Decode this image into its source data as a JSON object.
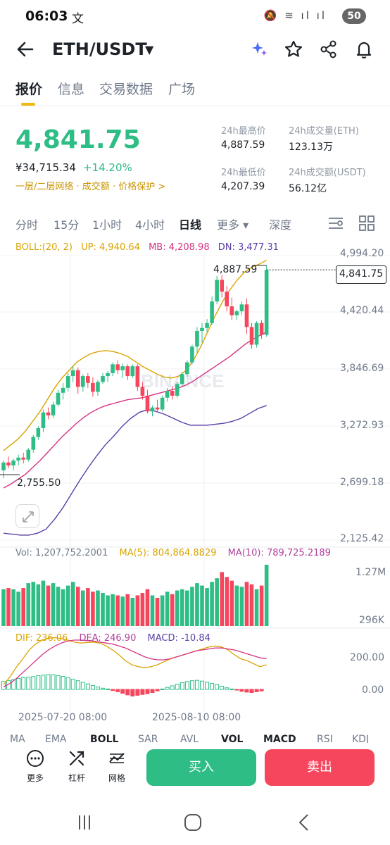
{
  "status": {
    "time": "06:03",
    "glyph": "文",
    "icons": "🔕 ≋ ıl ıl",
    "battery": "50"
  },
  "header": {
    "pair": "ETH/USDT"
  },
  "tabs": [
    "报价",
    "信息",
    "交易数据",
    "广场"
  ],
  "ticker": {
    "price": "4,841.75",
    "cny": "¥34,715.34",
    "change": "+14.20%",
    "links": [
      "一层/二层网络",
      "成交额",
      "价格保护 >"
    ],
    "stats": [
      {
        "label": "24h最高价",
        "value": "4,887.59"
      },
      {
        "label": "24h成交量(ETH)",
        "value": "123.13万"
      },
      {
        "label": "24h最低价",
        "value": "4,207.39"
      },
      {
        "label": "24h成交额(USDT)",
        "value": "56.12亿"
      }
    ]
  },
  "timeframes": [
    "分时",
    "15分",
    "1小时",
    "4小时",
    "日线",
    "更多 ▾",
    "深度"
  ],
  "indicators": {
    "boll": "BOLL:(20, 2)",
    "up": "UP: 4,940.64",
    "mb": "MB: 4,208.98",
    "dn": "DN: 3,477.31",
    "vol": "Vol: 1,207,752.2001",
    "ma5": "MA(5): 804,864.8829",
    "ma10": "MA(10): 789,725.2189",
    "dif": "DIF: 236.06",
    "dea": "DEA: 246.90",
    "macd": "MACD: -10.84"
  },
  "axis": {
    "price_ticks": [
      "4,994.20",
      "4,420.44",
      "3,846.69",
      "3,272.93",
      "2,699.18",
      "2,125.42"
    ],
    "vol_ticks": [
      "1.27M",
      "296K"
    ],
    "macd_ticks": [
      "200.00",
      "0.00"
    ],
    "dates": [
      "2025-07-20 08:00",
      "2025-08-10 08:00"
    ],
    "high_label": "4,887.59",
    "low_label": "2,755.50",
    "current_label": "4,841.75",
    "watermark": "BINANCE"
  },
  "indicator_tabs": [
    "MA",
    "EMA",
    "BOLL",
    "SAR",
    "AVL",
    "VOL",
    "MACD",
    "RSI",
    "KDJ"
  ],
  "bottom": {
    "more": "更多",
    "leverage": "杠杆",
    "grid": "网格",
    "buy": "买入",
    "sell": "卖出"
  },
  "colors": {
    "up": "#2ebd85",
    "down": "#f6465d",
    "accent": "#f0b90b",
    "boll_up": "#d9a400",
    "boll_mb": "#d63384",
    "boll_dn": "#5b3ea6"
  },
  "chart_data": {
    "type": "candlestick",
    "ylim": [
      2125.42,
      4994.2
    ],
    "candles": [
      {
        "o": 2800,
        "h": 2900,
        "l": 2720,
        "c": 2880
      },
      {
        "o": 2880,
        "h": 2940,
        "l": 2820,
        "c": 2850
      },
      {
        "o": 2850,
        "h": 2920,
        "l": 2800,
        "c": 2900
      },
      {
        "o": 2900,
        "h": 2960,
        "l": 2850,
        "c": 2930
      },
      {
        "o": 2930,
        "h": 2980,
        "l": 2870,
        "c": 2910
      },
      {
        "o": 2910,
        "h": 3030,
        "l": 2890,
        "c": 3010
      },
      {
        "o": 3010,
        "h": 3160,
        "l": 2980,
        "c": 3140
      },
      {
        "o": 3140,
        "h": 3250,
        "l": 3110,
        "c": 3230
      },
      {
        "o": 3230,
        "h": 3420,
        "l": 3190,
        "c": 3390
      },
      {
        "o": 3390,
        "h": 3440,
        "l": 3320,
        "c": 3360
      },
      {
        "o": 3360,
        "h": 3500,
        "l": 3330,
        "c": 3470
      },
      {
        "o": 3470,
        "h": 3620,
        "l": 3450,
        "c": 3590
      },
      {
        "o": 3590,
        "h": 3690,
        "l": 3520,
        "c": 3640
      },
      {
        "o": 3640,
        "h": 3790,
        "l": 3600,
        "c": 3760
      },
      {
        "o": 3760,
        "h": 3860,
        "l": 3700,
        "c": 3820
      },
      {
        "o": 3820,
        "h": 3850,
        "l": 3580,
        "c": 3650
      },
      {
        "o": 3650,
        "h": 3780,
        "l": 3600,
        "c": 3760
      },
      {
        "o": 3760,
        "h": 3790,
        "l": 3640,
        "c": 3690
      },
      {
        "o": 3690,
        "h": 3750,
        "l": 3550,
        "c": 3600
      },
      {
        "o": 3600,
        "h": 3720,
        "l": 3560,
        "c": 3700
      },
      {
        "o": 3700,
        "h": 3790,
        "l": 3680,
        "c": 3760
      },
      {
        "o": 3760,
        "h": 3810,
        "l": 3700,
        "c": 3790
      },
      {
        "o": 3790,
        "h": 3900,
        "l": 3760,
        "c": 3880
      },
      {
        "o": 3880,
        "h": 3920,
        "l": 3780,
        "c": 3820
      },
      {
        "o": 3820,
        "h": 3890,
        "l": 3740,
        "c": 3860
      },
      {
        "o": 3860,
        "h": 3880,
        "l": 3720,
        "c": 3760
      },
      {
        "o": 3760,
        "h": 3880,
        "l": 3740,
        "c": 3860
      },
      {
        "o": 3860,
        "h": 3880,
        "l": 3610,
        "c": 3650
      },
      {
        "o": 3650,
        "h": 3700,
        "l": 3520,
        "c": 3560
      },
      {
        "o": 3560,
        "h": 3620,
        "l": 3380,
        "c": 3400
      },
      {
        "o": 3400,
        "h": 3460,
        "l": 3350,
        "c": 3440
      },
      {
        "o": 3440,
        "h": 3520,
        "l": 3390,
        "c": 3420
      },
      {
        "o": 3420,
        "h": 3560,
        "l": 3400,
        "c": 3540
      },
      {
        "o": 3540,
        "h": 3640,
        "l": 3500,
        "c": 3610
      },
      {
        "o": 3610,
        "h": 3660,
        "l": 3520,
        "c": 3560
      },
      {
        "o": 3560,
        "h": 3700,
        "l": 3540,
        "c": 3680
      },
      {
        "o": 3680,
        "h": 3800,
        "l": 3660,
        "c": 3780
      },
      {
        "o": 3780,
        "h": 3920,
        "l": 3750,
        "c": 3900
      },
      {
        "o": 3900,
        "h": 4080,
        "l": 3880,
        "c": 4060
      },
      {
        "o": 4060,
        "h": 4260,
        "l": 4000,
        "c": 4220
      },
      {
        "o": 4220,
        "h": 4300,
        "l": 4100,
        "c": 4250
      },
      {
        "o": 4250,
        "h": 4340,
        "l": 4210,
        "c": 4300
      },
      {
        "o": 4300,
        "h": 4570,
        "l": 4280,
        "c": 4520
      },
      {
        "o": 4520,
        "h": 4780,
        "l": 4490,
        "c": 4740
      },
      {
        "o": 4740,
        "h": 4790,
        "l": 4560,
        "c": 4620
      },
      {
        "o": 4620,
        "h": 4680,
        "l": 4420,
        "c": 4470
      },
      {
        "o": 4470,
        "h": 4560,
        "l": 4330,
        "c": 4380
      },
      {
        "o": 4380,
        "h": 4440,
        "l": 4330,
        "c": 4420
      },
      {
        "o": 4420,
        "h": 4520,
        "l": 4380,
        "c": 4490
      },
      {
        "o": 4490,
        "h": 4550,
        "l": 4190,
        "c": 4260
      },
      {
        "o": 4260,
        "h": 4300,
        "l": 4040,
        "c": 4080
      },
      {
        "o": 4080,
        "h": 4320,
        "l": 4050,
        "c": 4300
      },
      {
        "o": 4300,
        "h": 4330,
        "l": 4140,
        "c": 4180
      },
      {
        "o": 4180,
        "h": 4888,
        "l": 4160,
        "c": 4841
      }
    ],
    "boll_up": [
      3000,
      3060,
      3120,
      3200,
      3300,
      3400,
      3520,
      3640,
      3740,
      3820,
      3900,
      3950,
      3990,
      4010,
      4020,
      4010,
      3990,
      3960,
      3910,
      3860,
      3820,
      3780,
      3750,
      3740,
      3760,
      3820,
      3920,
      4060,
      4220,
      4380,
      4520,
      4640,
      4740,
      4820,
      4870,
      4900,
      4940
    ],
    "boll_mb": [
      2620,
      2660,
      2710,
      2760,
      2830,
      2900,
      2980,
      3060,
      3140,
      3210,
      3280,
      3340,
      3390,
      3430,
      3460,
      3480,
      3500,
      3520,
      3530,
      3540,
      3560,
      3580,
      3600,
      3620,
      3640,
      3670,
      3710,
      3760,
      3810,
      3860,
      3910,
      3960,
      4020,
      4080,
      4130,
      4170,
      4209
    ],
    "boll_dn": [
      2160,
      2150,
      2140,
      2140,
      2160,
      2200,
      2300,
      2420,
      2560,
      2700,
      2830,
      2950,
      3060,
      3150,
      3250,
      3330,
      3390,
      3420,
      3400,
      3370,
      3330,
      3290,
      3260,
      3260,
      3260,
      3270,
      3280,
      3300,
      3330,
      3380,
      3430,
      3460
    ],
    "volume": [
      0.6,
      0.62,
      0.6,
      0.56,
      0.62,
      0.7,
      0.72,
      0.68,
      0.74,
      0.66,
      0.7,
      0.64,
      0.6,
      0.66,
      0.72,
      0.64,
      0.58,
      0.62,
      0.56,
      0.58,
      0.54,
      0.5,
      0.52,
      0.5,
      0.48,
      0.52,
      0.46,
      0.5,
      0.54,
      0.6,
      0.5,
      0.46,
      0.5,
      0.56,
      0.52,
      0.58,
      0.6,
      0.58,
      0.64,
      0.7,
      0.66,
      0.62,
      0.72,
      0.78,
      0.88,
      0.8,
      0.74,
      0.66,
      0.64,
      0.72,
      0.68,
      0.6,
      0.66,
      1.0
    ],
    "vol_up": [
      54,
      54,
      54,
      54,
      54,
      54,
      54,
      54,
      54,
      54,
      54,
      54,
      54,
      54,
      54,
      54,
      54,
      54,
      54,
      54,
      54,
      54,
      54,
      54,
      54,
      54,
      54,
      54,
      54,
      54,
      54,
      54,
      54,
      54,
      54,
      54,
      54,
      54,
      54,
      54,
      54,
      54,
      54,
      54,
      54,
      54,
      54,
      54,
      54,
      54,
      54,
      54,
      54,
      54
    ],
    "macd_hist": [
      0.4,
      0.45,
      0.5,
      0.55,
      0.6,
      0.62,
      0.65,
      0.7,
      0.72,
      0.75,
      0.74,
      0.7,
      0.66,
      0.6,
      0.52,
      0.44,
      0.36,
      0.28,
      0.2,
      0.12,
      0.06,
      0.02,
      -0.06,
      -0.12,
      -0.2,
      -0.28,
      -0.34,
      -0.3,
      -0.26,
      -0.22,
      -0.16,
      -0.08,
      0.02,
      0.1,
      0.18,
      0.26,
      0.34,
      0.4,
      0.44,
      0.46,
      0.42,
      0.36,
      0.3,
      0.24,
      0.16,
      0.08,
      0.02,
      -0.04,
      -0.1,
      -0.14,
      -0.16,
      -0.12,
      -0.08
    ],
    "dif": [
      0.1,
      0.25,
      0.45,
      0.62,
      0.8,
      0.92,
      1.0,
      1.04,
      1.05,
      1.03,
      1.0,
      0.96,
      0.94,
      0.95,
      0.96,
      0.94,
      0.88,
      0.8,
      0.7,
      0.58,
      0.5,
      0.46,
      0.44,
      0.46,
      0.5,
      0.56,
      0.62,
      0.66,
      0.7,
      0.74,
      0.78,
      0.82,
      0.86,
      0.88,
      0.86,
      0.8,
      0.7,
      0.62,
      0.58,
      0.52,
      0.46,
      0.5
    ],
    "dea": [
      0.05,
      0.12,
      0.22,
      0.34,
      0.46,
      0.58,
      0.7,
      0.8,
      0.88,
      0.94,
      0.98,
      1.0,
      1.0,
      0.99,
      0.98,
      0.96,
      0.94,
      0.92,
      0.88,
      0.84,
      0.78,
      0.72,
      0.66,
      0.62,
      0.6,
      0.6,
      0.62,
      0.66,
      0.7,
      0.74,
      0.78,
      0.8,
      0.82,
      0.84,
      0.84,
      0.82,
      0.8,
      0.76,
      0.72,
      0.68,
      0.64,
      0.62
    ]
  }
}
